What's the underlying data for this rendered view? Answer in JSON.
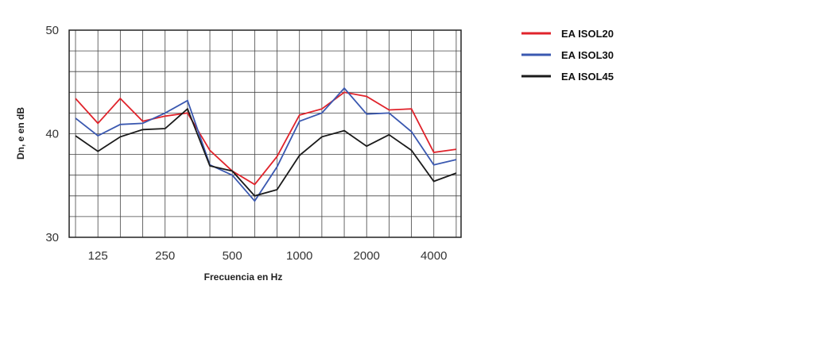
{
  "chart_data": {
    "type": "line",
    "xlabel": "Frecuencia en Hz",
    "ylabel": "Dn, e en dB",
    "ylim": [
      30,
      50
    ],
    "yticks": [
      "50",
      "40",
      "30"
    ],
    "x": [
      100,
      125,
      160,
      200,
      250,
      315,
      400,
      500,
      630,
      800,
      1000,
      1250,
      1600,
      2000,
      2500,
      3150,
      4000,
      5000
    ],
    "xtick_labels": [
      "125",
      "250",
      "500",
      "1000",
      "2000",
      "4000"
    ],
    "grid": true,
    "legend_position": "right",
    "series": [
      {
        "name": "EA ISOL20",
        "color": "#e0232b",
        "values": [
          43.4,
          41.0,
          43.4,
          41.2,
          41.7,
          42.0,
          38.4,
          36.4,
          35.1,
          37.8,
          41.8,
          42.4,
          44.0,
          43.6,
          42.3,
          42.4,
          38.2,
          38.5
        ]
      },
      {
        "name": "EA ISOL30",
        "color": "#3a58b0",
        "values": [
          41.5,
          39.8,
          40.9,
          41.0,
          42.0,
          43.2,
          37.0,
          36.0,
          33.5,
          36.8,
          41.2,
          42.0,
          44.4,
          41.9,
          42.0,
          40.2,
          37.0,
          37.5
        ]
      },
      {
        "name": "EA ISOL45",
        "color": "#1a1a1a",
        "values": [
          39.8,
          38.3,
          39.7,
          40.4,
          40.5,
          42.4,
          36.9,
          36.4,
          34.0,
          34.6,
          37.9,
          39.7,
          40.3,
          38.8,
          39.9,
          38.4,
          35.4,
          36.2
        ]
      }
    ]
  }
}
